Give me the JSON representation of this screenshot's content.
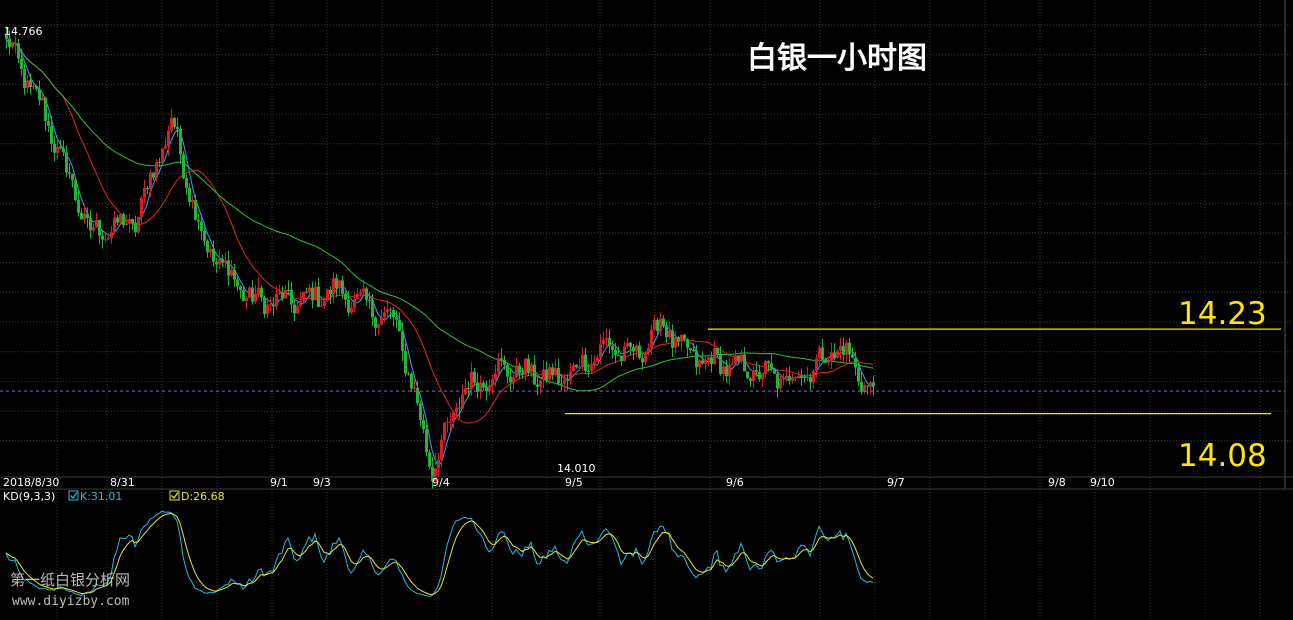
{
  "title": "白银一小时图",
  "colors": {
    "background": "#000000",
    "grid": "#3a3a3a",
    "up": "#d0202a",
    "down": "#27b33a",
    "ma_short": "#3aa0ff",
    "ma_mid": "#e02828",
    "ma_long": "#30c030",
    "level": "#ffe600",
    "last_price": "#5a7ad8",
    "k_line": "#2ab8d8",
    "d_line": "#e8e23a",
    "text": "#ffffff",
    "watermark": "#cccccc"
  },
  "price_labels": {
    "high": "14.766",
    "low": "14.010",
    "resistance": "14.23",
    "support": "14.08"
  },
  "date_labels": [
    "2018/8/30",
    "8/31",
    "9/1",
    "9/3",
    "9/4",
    "9/5",
    "9/6",
    "9/7",
    "9/8",
    "9/10"
  ],
  "indicator": {
    "name": "KD(9,3,3)",
    "k_label": "K:31.01",
    "d_label": "D:26.68"
  },
  "watermark": {
    "cn": "第一纸白银分析网",
    "url": "www.diyizby.com"
  },
  "chart_data": [
    {
      "type": "candlestick",
      "title": "白银一小时图",
      "ylim": [
        13.98,
        14.8
      ],
      "y_marks": {
        "high": 14.766,
        "low": 14.01
      },
      "levels": [
        14.23,
        14.08
      ],
      "last_price": 14.12,
      "anchors": [
        [
          0,
          14.74
        ],
        [
          12,
          14.62
        ],
        [
          28,
          14.4
        ],
        [
          43,
          14.42
        ],
        [
          55,
          14.6
        ],
        [
          66,
          14.38
        ],
        [
          82,
          14.28
        ],
        [
          98,
          14.28
        ],
        [
          110,
          14.3
        ],
        [
          130,
          14.24
        ],
        [
          142,
          13.98
        ],
        [
          152,
          14.12
        ],
        [
          165,
          14.16
        ],
        [
          185,
          14.14
        ],
        [
          200,
          14.2
        ],
        [
          210,
          14.18
        ],
        [
          218,
          14.24
        ],
        [
          228,
          14.18
        ],
        [
          245,
          14.16
        ],
        [
          260,
          14.14
        ],
        [
          268,
          14.16
        ],
        [
          278,
          14.2
        ],
        [
          288,
          14.12
        ]
      ],
      "moving_averages": [
        "short",
        "mid",
        "long"
      ]
    },
    {
      "type": "line",
      "name": "KD(9,3,3)",
      "series": [
        {
          "name": "K",
          "last": 31.01
        },
        {
          "name": "D",
          "last": 26.68
        }
      ],
      "ylim": [
        0,
        100
      ]
    }
  ]
}
